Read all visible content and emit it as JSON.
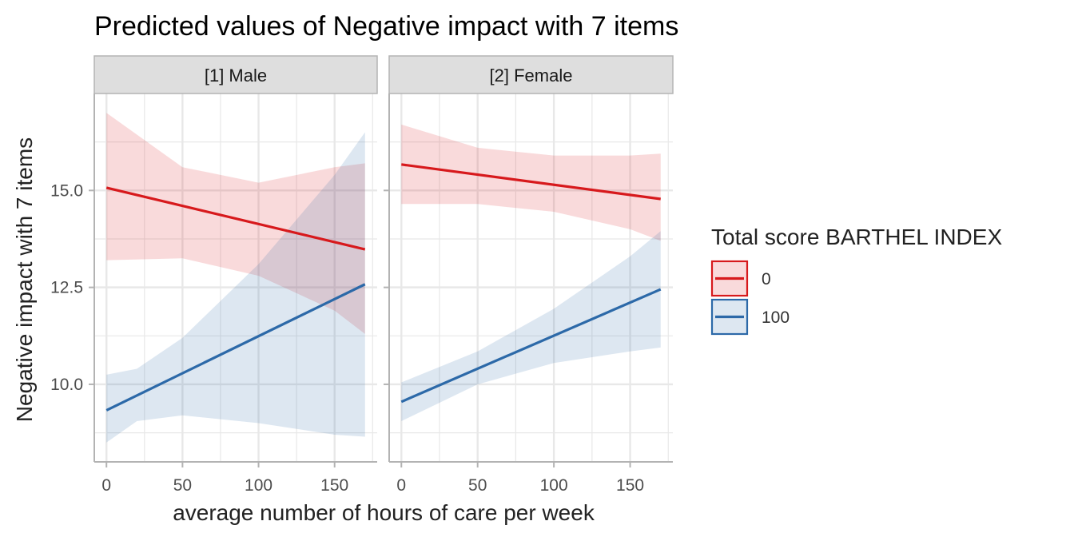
{
  "chart_data": {
    "type": "line",
    "title": "Predicted values of Negative impact with 7 items",
    "xlabel": "average number of hours of care per week",
    "ylabel": "Negative impact with 7 items",
    "xlim": [
      -8,
      178
    ],
    "ylim": [
      8.0,
      17.5
    ],
    "x_ticks": [
      0,
      50,
      100,
      150
    ],
    "y_ticks": [
      10.0,
      12.5,
      15.0
    ],
    "y_tick_labels": [
      "10.0",
      "12.5",
      "15.0"
    ],
    "grid": true,
    "legend": {
      "title": "Total score BARTHEL INDEX",
      "position": "right",
      "entries": [
        "0",
        "100"
      ]
    },
    "colors": {
      "0": "#d7191c",
      "100": "#2c69a8",
      "strip_bg": "#dedede",
      "grid": "#e8e8e8"
    },
    "panels": [
      {
        "label": "[1] Male",
        "series": [
          {
            "name": "0",
            "x": [
              0,
              170
            ],
            "y": [
              15.07,
              13.48
            ],
            "ci_x": [
              0,
              50,
              100,
              150,
              170
            ],
            "ci_lower": [
              13.2,
              13.25,
              12.8,
              11.9,
              11.3
            ],
            "ci_upper": [
              17.0,
              15.6,
              15.2,
              15.6,
              15.7
            ]
          },
          {
            "name": "100",
            "x": [
              0,
              170
            ],
            "y": [
              9.33,
              12.58
            ],
            "ci_x": [
              0,
              20,
              50,
              100,
              150,
              170
            ],
            "ci_lower": [
              8.5,
              9.05,
              9.2,
              9.0,
              8.7,
              8.65
            ],
            "ci_upper": [
              10.25,
              10.4,
              11.2,
              13.1,
              15.4,
              16.5
            ]
          }
        ]
      },
      {
        "label": "[2] Female",
        "series": [
          {
            "name": "0",
            "x": [
              0,
              170
            ],
            "y": [
              15.67,
              14.78
            ],
            "ci_x": [
              0,
              50,
              100,
              150,
              170
            ],
            "ci_lower": [
              14.65,
              14.65,
              14.45,
              14.0,
              13.7
            ],
            "ci_upper": [
              16.7,
              16.1,
              15.9,
              15.9,
              15.95
            ]
          },
          {
            "name": "100",
            "x": [
              0,
              170
            ],
            "y": [
              9.55,
              12.45
            ],
            "ci_x": [
              0,
              50,
              100,
              150,
              170
            ],
            "ci_lower": [
              9.05,
              10.0,
              10.55,
              10.85,
              10.95
            ],
            "ci_upper": [
              10.05,
              10.85,
              11.95,
              13.3,
              13.95
            ]
          }
        ]
      }
    ]
  }
}
